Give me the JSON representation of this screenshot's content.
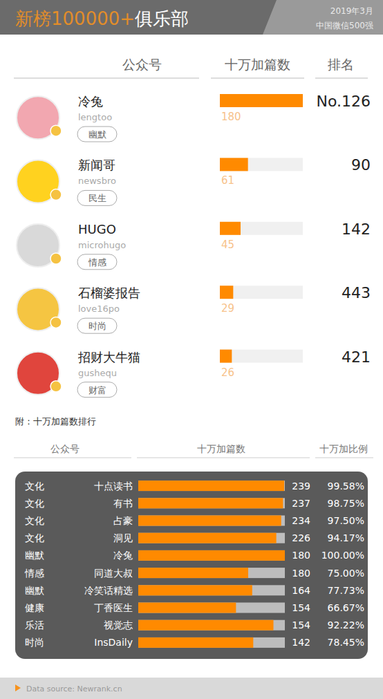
{
  "header": {
    "title_highlight": "新榜100000+",
    "title": "俱乐部",
    "date": "2019年3月",
    "subtitle": "中国微信500强"
  },
  "chart_data": [
    {
      "type": "bar",
      "orientation": "horizontal",
      "column_headers": [
        "公众号",
        "十万加篇数",
        "排名"
      ],
      "categories": [
        "冷兔",
        "新闻哥",
        "HUGO",
        "石榴婆报告",
        "招财大牛猫"
      ],
      "ids": [
        "lengtoo",
        "newsbro",
        "microhugo",
        "love16po",
        "gushequ"
      ],
      "tags": [
        "幽默",
        "民生",
        "情感",
        "时尚",
        "财富"
      ],
      "values": [
        180,
        61,
        45,
        29,
        26
      ],
      "ranks": [
        "No.126",
        "90",
        "142",
        "443",
        "421"
      ],
      "xlim": [
        0,
        180
      ],
      "data_labels": true,
      "tick_labels": false,
      "color": "#ff8a00"
    },
    {
      "type": "bar",
      "orientation": "horizontal",
      "title": "附：十万加篇数排行",
      "column_headers": [
        "公众号",
        "十万加篇数",
        "十万加比例"
      ],
      "tags": [
        "文化",
        "文化",
        "文化",
        "文化",
        "幽默",
        "情感",
        "幽默",
        "健康",
        "乐活",
        "时尚"
      ],
      "categories": [
        "十点读书",
        "有书",
        "占豪",
        "洞见",
        "冷兔",
        "同道大叔",
        "冷笑话精选",
        "丁香医生",
        "视觉志",
        "InsDaily"
      ],
      "counts": [
        239,
        237,
        234,
        226,
        180,
        180,
        164,
        154,
        154,
        142
      ],
      "values": [
        99.58,
        98.75,
        97.5,
        94.17,
        100,
        75,
        77.73,
        66.67,
        92.22,
        78.45
      ],
      "value_labels": [
        "99.58%",
        "98.75%",
        "97.50%",
        "94.17%",
        "100.00%",
        "75.00%",
        "77.73%",
        "66.67%",
        "92.22%",
        "78.45%"
      ],
      "xlim": [
        0,
        100
      ],
      "data_labels": true,
      "tick_labels": false,
      "color": "#ff8a00"
    }
  ],
  "footer": {
    "source": "Data source: Newrank.cn"
  }
}
